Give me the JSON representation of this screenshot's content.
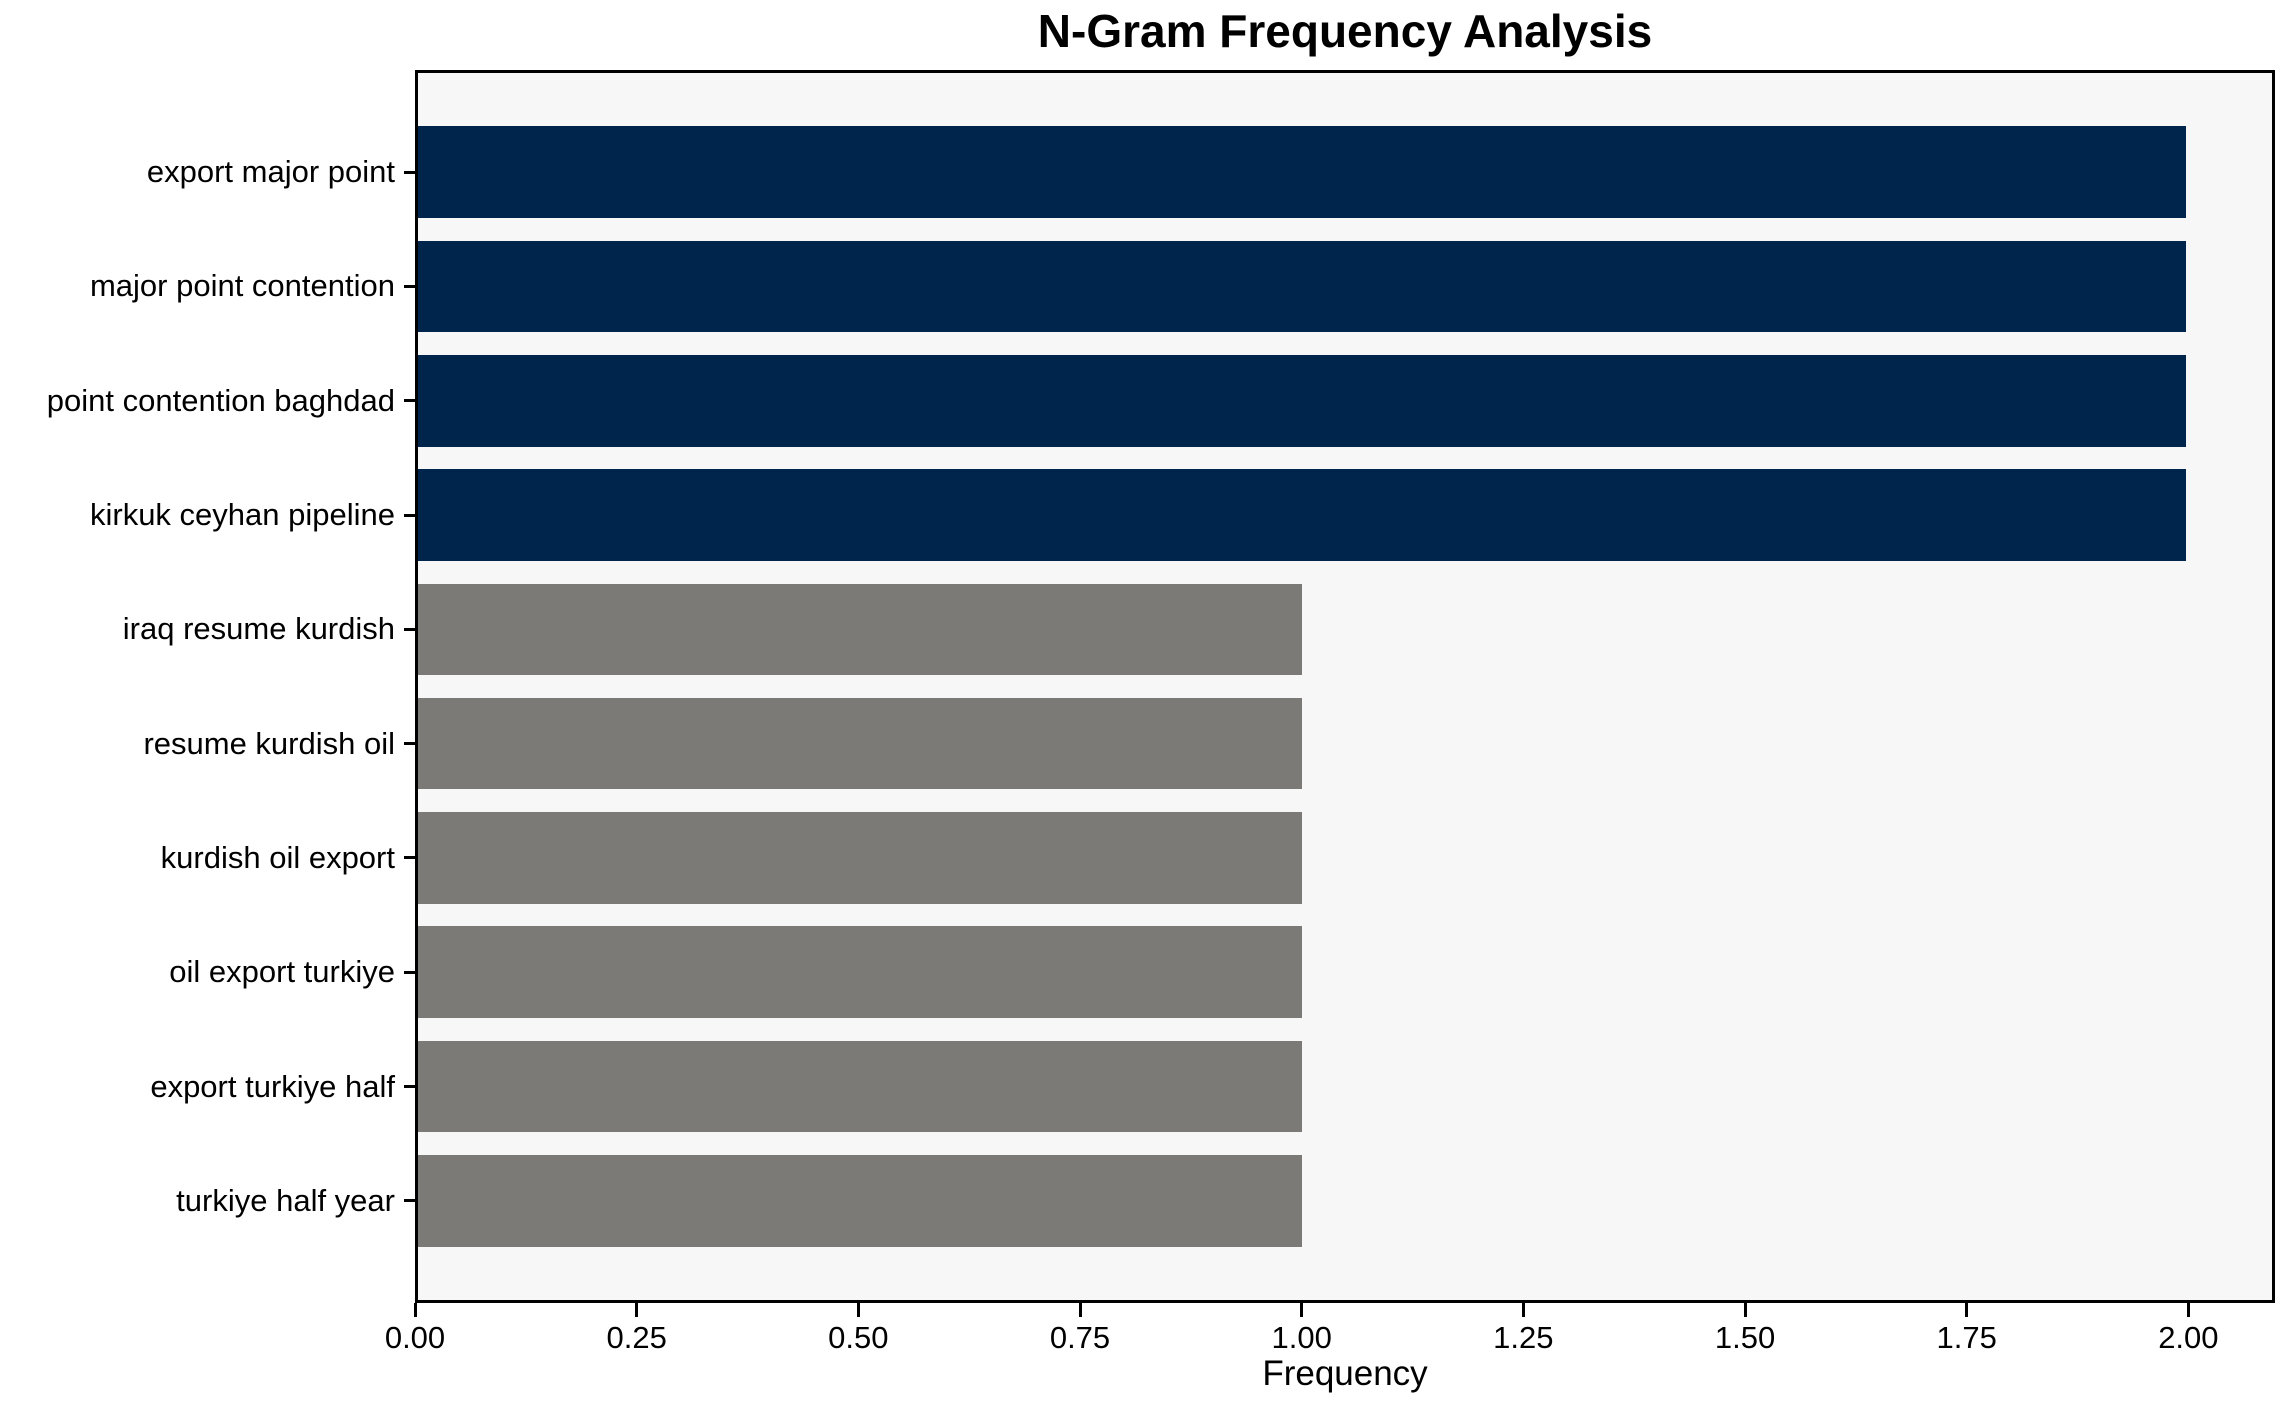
{
  "chart_data": {
    "type": "bar",
    "orientation": "horizontal",
    "title": "N-Gram Frequency Analysis",
    "xlabel": "Frequency",
    "ylabel": "",
    "categories": [
      "export major point",
      "major point contention",
      "point contention baghdad",
      "kirkuk ceyhan pipeline",
      "iraq resume kurdish",
      "resume kurdish oil",
      "kurdish oil export",
      "oil export turkiye",
      "export turkiye half",
      "turkiye half year"
    ],
    "values": [
      2,
      2,
      2,
      2,
      1,
      1,
      1,
      1,
      1,
      1
    ],
    "bar_colors": [
      "#00254d",
      "#00254d",
      "#00254d",
      "#00254d",
      "#7b7a77",
      "#7b7a77",
      "#7b7a77",
      "#7b7a77",
      "#7b7a77",
      "#7b7a77"
    ],
    "xticks": [
      0.0,
      0.25,
      0.5,
      0.75,
      1.0,
      1.25,
      1.5,
      1.75,
      2.0
    ],
    "xtick_labels": [
      "0.00",
      "0.25",
      "0.50",
      "0.75",
      "1.00",
      "1.25",
      "1.50",
      "1.75",
      "2.00"
    ],
    "xlim": [
      0,
      2.0977
    ],
    "grid": false,
    "legend_position": "none",
    "plot_background": "#f7f7f8",
    "colors": {
      "high_frequency_bar": "#00254d",
      "low_frequency_bar": "#7b7a77",
      "spine": "#000000",
      "text": "#000000"
    }
  }
}
